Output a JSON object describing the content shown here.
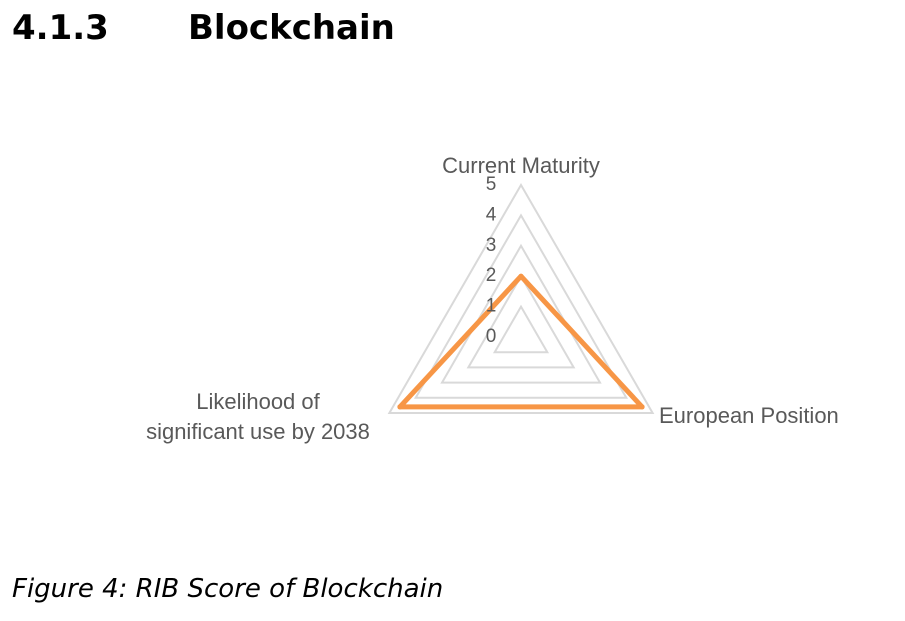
{
  "section": {
    "number": "4.1.3",
    "title": "Blockchain"
  },
  "caption": "Figure 4: RIB Score of Blockchain",
  "chart_data": {
    "type": "radar",
    "axes": [
      "Current Maturity",
      "European Position",
      "Likelihood of significant use by 2038"
    ],
    "axis_label_lines": [
      [
        "Current Maturity"
      ],
      [
        "European Position"
      ],
      [
        "Likelihood of",
        "significant use by 2038"
      ]
    ],
    "scale": {
      "min": 0,
      "max": 5,
      "ticks": [
        0,
        1,
        2,
        3,
        4,
        5
      ]
    },
    "series": [
      {
        "values": [
          2,
          4.6,
          4.6
        ],
        "color": "#F79646"
      }
    ],
    "grid_color": "#D9D9D9",
    "legend": "none"
  }
}
